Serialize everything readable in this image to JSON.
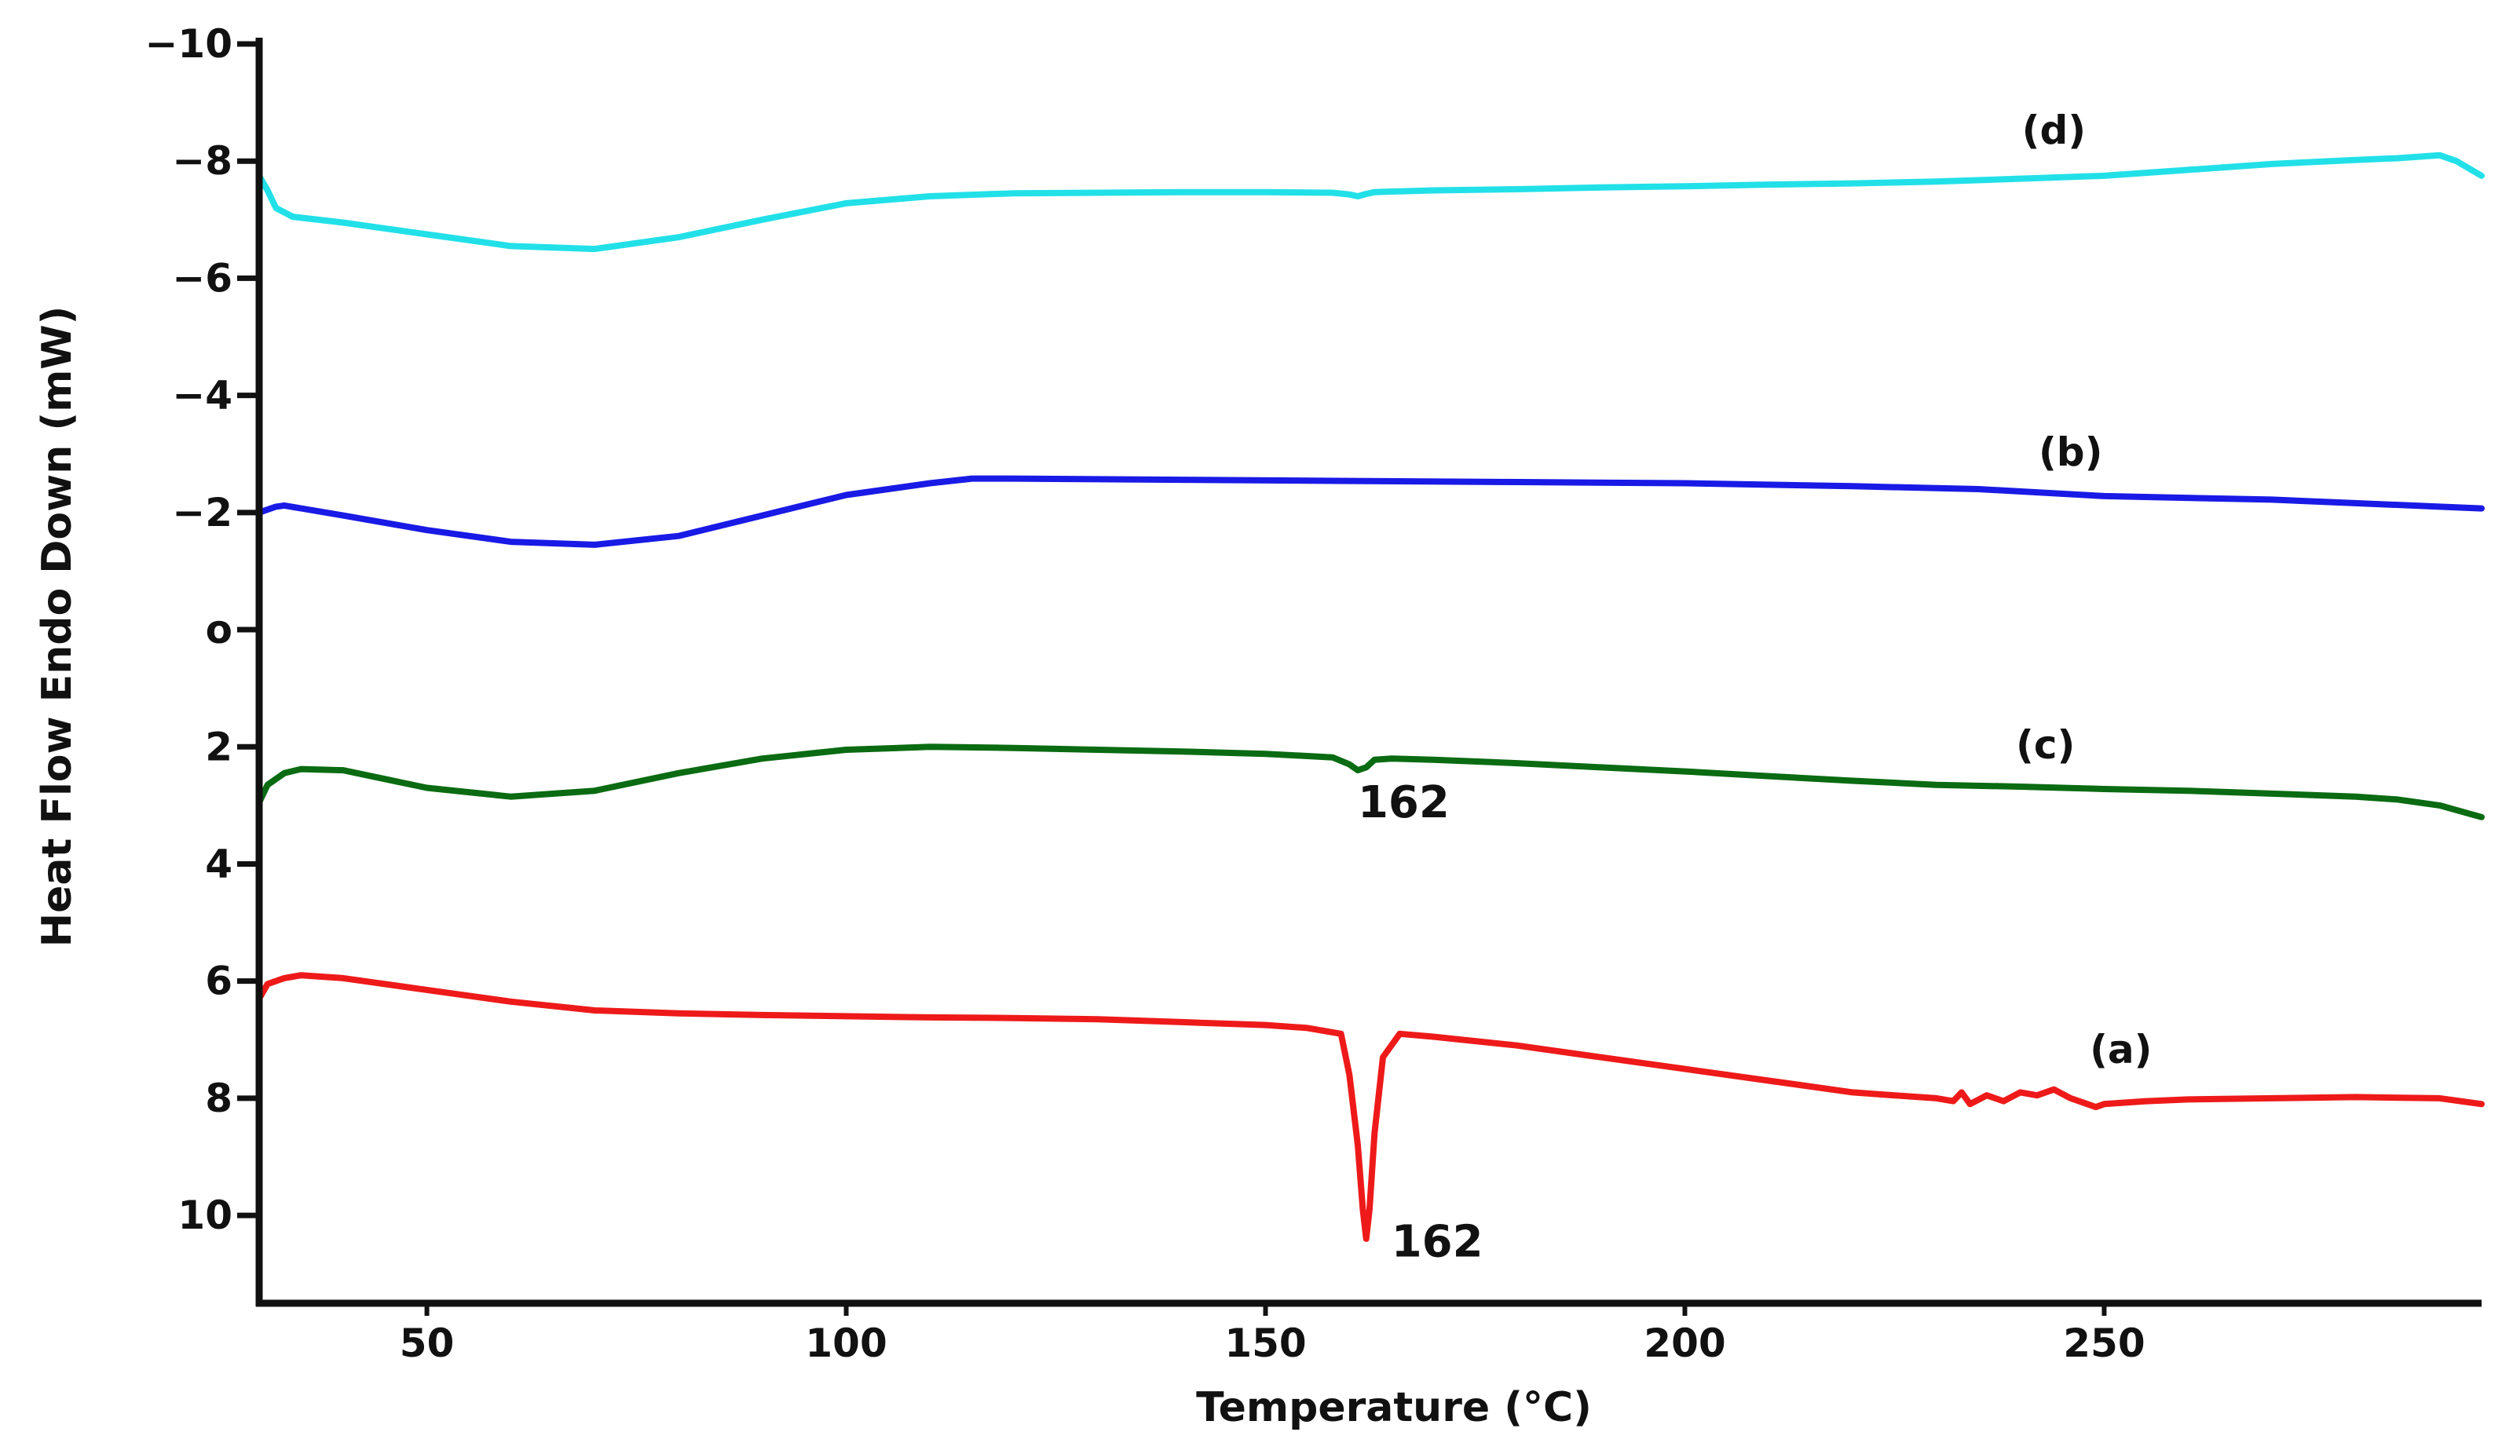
{
  "chart_data": {
    "type": "line",
    "title": "",
    "xlabel": "Temperature (°C)",
    "ylabel": "Heat Flow Endo Down (mW)",
    "xlim": [
      30,
      295
    ],
    "ylim": [
      -10,
      11.5
    ],
    "y_inverted": true,
    "grid": false,
    "x_ticks": [
      {
        "value": 50,
        "label": "50"
      },
      {
        "value": 100,
        "label": "100"
      },
      {
        "value": 150,
        "label": "150"
      },
      {
        "value": 200,
        "label": "200"
      },
      {
        "value": 250,
        "label": "250"
      }
    ],
    "y_ticks": [
      {
        "value": -10,
        "label": "−10"
      },
      {
        "value": -8,
        "label": "−8"
      },
      {
        "value": -6,
        "label": "−6"
      },
      {
        "value": -4,
        "label": "−4"
      },
      {
        "value": -2,
        "label": "−2"
      },
      {
        "value": 0,
        "label": "o"
      },
      {
        "value": 2,
        "label": "2"
      },
      {
        "value": 4,
        "label": "4"
      },
      {
        "value": 6,
        "label": "6"
      },
      {
        "value": 8,
        "label": "8"
      },
      {
        "value": 10,
        "label": "10"
      }
    ],
    "series": [
      {
        "name": "(d)",
        "color": "#22e0e8",
        "label_at": [
          244,
          -8.3
        ],
        "x": [
          30,
          31,
          32,
          34,
          40,
          50,
          60,
          70,
          80,
          90,
          100,
          110,
          120,
          130,
          140,
          150,
          158,
          160,
          161,
          162,
          163,
          165,
          170,
          180,
          190,
          200,
          210,
          220,
          230,
          240,
          250,
          260,
          270,
          280,
          285,
          288,
          290,
          292,
          295
        ],
        "y": [
          -7.75,
          -7.5,
          -7.2,
          -7.05,
          -6.95,
          -6.75,
          -6.55,
          -6.5,
          -6.7,
          -7.0,
          -7.28,
          -7.4,
          -7.45,
          -7.46,
          -7.47,
          -7.47,
          -7.46,
          -7.43,
          -7.4,
          -7.44,
          -7.47,
          -7.48,
          -7.5,
          -7.52,
          -7.55,
          -7.57,
          -7.6,
          -7.62,
          -7.65,
          -7.7,
          -7.75,
          -7.85,
          -7.95,
          -8.02,
          -8.05,
          -8.08,
          -8.1,
          -8.0,
          -7.75
        ]
      },
      {
        "name": "(b)",
        "color": "#1a1ae6",
        "label_at": [
          246,
          -2.8
        ],
        "x": [
          30,
          32,
          33,
          40,
          50,
          60,
          70,
          80,
          90,
          100,
          110,
          115,
          120,
          140,
          160,
          180,
          200,
          220,
          235,
          250,
          270,
          290,
          295
        ],
        "y": [
          -2.0,
          -2.1,
          -2.12,
          -1.95,
          -1.7,
          -1.5,
          -1.45,
          -1.6,
          -1.95,
          -2.3,
          -2.5,
          -2.58,
          -2.58,
          -2.56,
          -2.54,
          -2.52,
          -2.5,
          -2.45,
          -2.4,
          -2.28,
          -2.22,
          -2.1,
          -2.07
        ]
      },
      {
        "name": "(c)",
        "color": "#0a6b12",
        "label_at": [
          243,
          2.2
        ],
        "x": [
          30,
          31,
          33,
          35,
          40,
          50,
          60,
          70,
          80,
          90,
          100,
          110,
          120,
          130,
          140,
          150,
          158,
          160,
          161,
          162,
          163,
          165,
          170,
          180,
          190,
          200,
          210,
          220,
          230,
          240,
          250,
          260,
          270,
          280,
          285,
          290,
          295
        ],
        "y": [
          2.95,
          2.65,
          2.45,
          2.38,
          2.4,
          2.7,
          2.85,
          2.75,
          2.45,
          2.2,
          2.05,
          2.0,
          2.02,
          2.05,
          2.08,
          2.12,
          2.18,
          2.3,
          2.4,
          2.35,
          2.22,
          2.2,
          2.22,
          2.28,
          2.35,
          2.42,
          2.5,
          2.58,
          2.65,
          2.68,
          2.72,
          2.75,
          2.8,
          2.85,
          2.9,
          3.0,
          3.2
        ]
      },
      {
        "name": "(a)",
        "color": "#ee1a1a",
        "label_at": [
          252,
          7.4
        ],
        "x": [
          30,
          31,
          33,
          35,
          40,
          50,
          60,
          70,
          80,
          90,
          100,
          110,
          120,
          130,
          140,
          150,
          155,
          159,
          160,
          161,
          161.6,
          162,
          162.4,
          163,
          164,
          166,
          170,
          180,
          190,
          200,
          210,
          220,
          225,
          230,
          232,
          233,
          234,
          236,
          238,
          240,
          242,
          244,
          246,
          248,
          249,
          250,
          255,
          260,
          270,
          280,
          290,
          295
        ],
        "y": [
          6.3,
          6.05,
          5.95,
          5.9,
          5.95,
          6.15,
          6.35,
          6.5,
          6.55,
          6.58,
          6.6,
          6.62,
          6.63,
          6.65,
          6.7,
          6.75,
          6.8,
          6.9,
          7.6,
          8.8,
          9.9,
          10.4,
          9.9,
          8.6,
          7.3,
          6.9,
          6.95,
          7.1,
          7.3,
          7.5,
          7.7,
          7.9,
          7.95,
          8.0,
          8.05,
          7.9,
          8.1,
          7.95,
          8.05,
          7.9,
          7.95,
          7.85,
          8.0,
          8.1,
          8.15,
          8.1,
          8.05,
          8.02,
          8.0,
          7.98,
          8.0,
          8.1
        ]
      }
    ],
    "annotations": [
      {
        "text": "162",
        "at": [
          161,
          3.2
        ]
      },
      {
        "text": "162",
        "at": [
          165,
          10.7
        ]
      }
    ]
  }
}
